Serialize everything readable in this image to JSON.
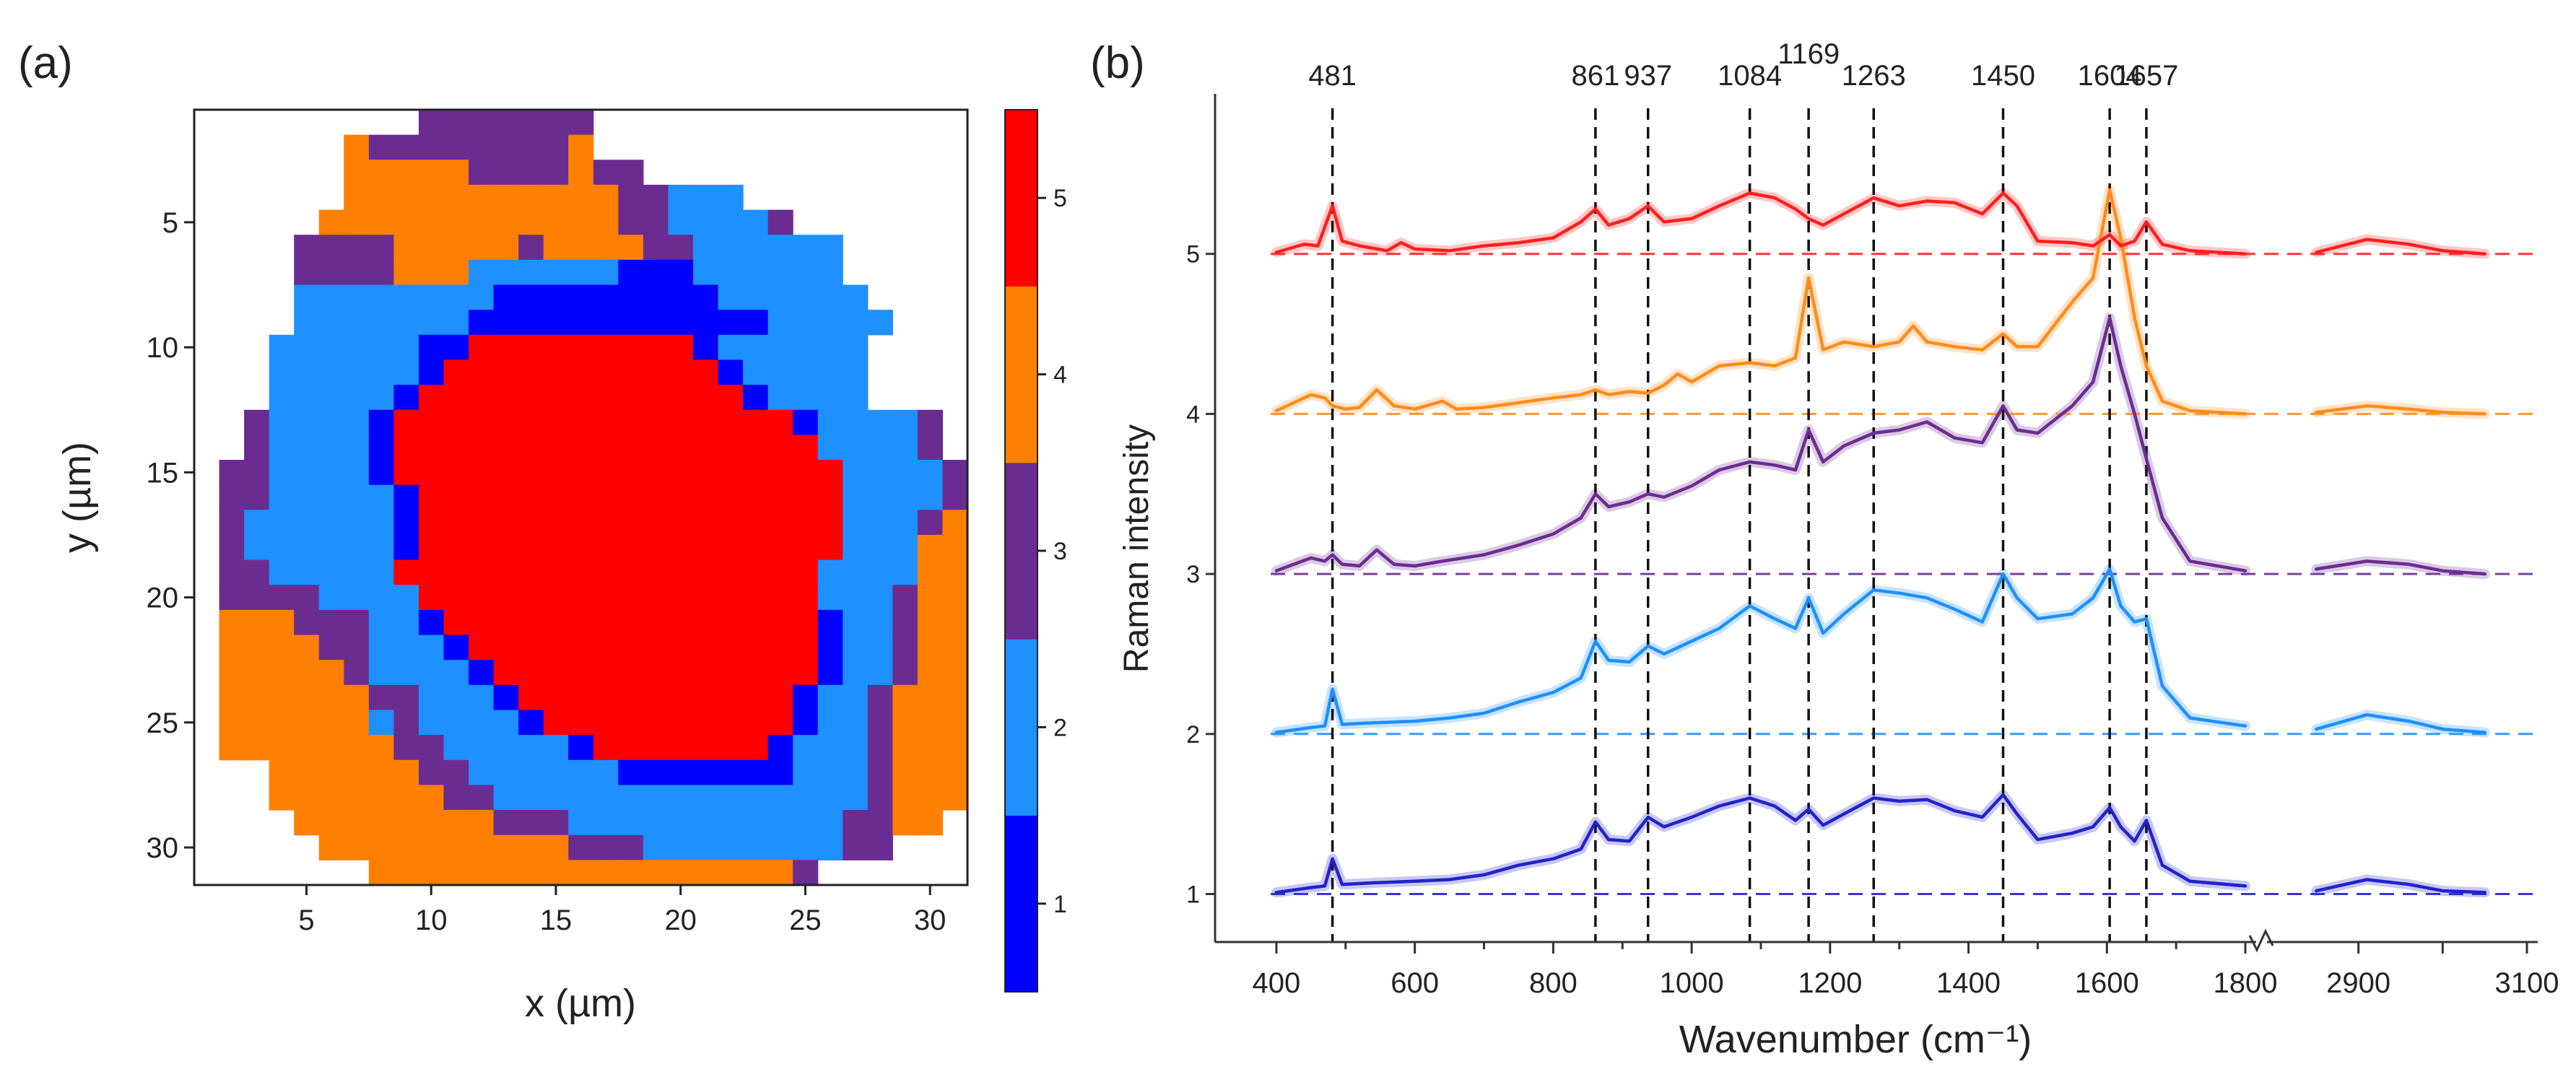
{
  "panel_labels": {
    "a": "(a)",
    "b": "(b)"
  },
  "chart_data": [
    {
      "type": "heatmap",
      "panel": "(a)",
      "xlabel": "x (µm)",
      "ylabel": "y (µm)",
      "xlim": [
        0.5,
        31.5
      ],
      "ylim": [
        31.5,
        0.5
      ],
      "xticks": [
        5,
        10,
        15,
        20,
        25,
        30
      ],
      "yticks": [
        5,
        10,
        15,
        20,
        25,
        30
      ],
      "colorbar": {
        "levels": [
          1,
          2,
          3,
          4,
          5
        ],
        "colors": [
          "#0000ff",
          "#1e90ff",
          "#6b2c91",
          "#ff8000",
          "#ff0000"
        ]
      },
      "cluster_map_rows": [
        ".........3333333...............",
        "......4333333334...............",
        "......444443333433.............",
        "......4444444444433222.........",
        ".....4444444444443322223........",
        "....3333444443444433222222......",
        "....3333444222222111222222......",
        "....22222222111111111222222.....",
        "....222222211111111111122222....",
        "...222222115555555551222222.....",
        "...222222155555555555122222.....",
        "...222221555555555555512222.....",
        "..3222215555555555555555122223..",
        "..3222215555555555555555522223..",
        ".332222155555555555555555522223.",
        ".3322222155555555555555555222234",
        ".3222222155555555555555555222344",
        ".3222222155555555555555555222444",
        ".33222225555555555555555522224444",
        ".333322225555555555555555222344444",
        ".44433322155555555555555512234444",
        ".4444332221555555555555551223444",
        ".4444432222155555555555551223444",
        ".4444443322215555555555512234444",
        ".4444442322221555555555512234444",
        ".4444444332222215555555122234444",
        "...44444433222222111111122234444",
        "...4444444332222222222222223444",
        "....44444444333222222222223344",
        ".....44444444443332222222233",
        ".......444444444444444443"
      ]
    },
    {
      "type": "line",
      "panel": "(b)",
      "xlabel": "Wavenumber (cm⁻¹)",
      "ylabel": "Raman intensity",
      "x_segments": [
        [
          350,
          1800
        ],
        [
          2800,
          3100
        ]
      ],
      "xticks": [
        400,
        600,
        800,
        1000,
        1200,
        1400,
        1600,
        1800,
        2900,
        3100
      ],
      "peak_markers": [
        481,
        861,
        937,
        1084,
        1169,
        1263,
        1450,
        1604,
        1657
      ],
      "series": [
        {
          "name": "1",
          "color": "#2222cc",
          "baseline": 1,
          "points": [
            [
              400,
              1.01
            ],
            [
              450,
              1.04
            ],
            [
              470,
              1.05
            ],
            [
              481,
              1.22
            ],
            [
              495,
              1.06
            ],
            [
              540,
              1.07
            ],
            [
              600,
              1.08
            ],
            [
              650,
              1.09
            ],
            [
              700,
              1.12
            ],
            [
              750,
              1.18
            ],
            [
              800,
              1.22
            ],
            [
              840,
              1.28
            ],
            [
              861,
              1.45
            ],
            [
              880,
              1.34
            ],
            [
              910,
              1.33
            ],
            [
              937,
              1.48
            ],
            [
              960,
              1.42
            ],
            [
              1000,
              1.48
            ],
            [
              1040,
              1.55
            ],
            [
              1084,
              1.6
            ],
            [
              1120,
              1.55
            ],
            [
              1150,
              1.46
            ],
            [
              1169,
              1.53
            ],
            [
              1190,
              1.43
            ],
            [
              1220,
              1.5
            ],
            [
              1263,
              1.6
            ],
            [
              1300,
              1.58
            ],
            [
              1340,
              1.59
            ],
            [
              1380,
              1.52
            ],
            [
              1420,
              1.48
            ],
            [
              1450,
              1.62
            ],
            [
              1470,
              1.5
            ],
            [
              1500,
              1.34
            ],
            [
              1550,
              1.38
            ],
            [
              1580,
              1.42
            ],
            [
              1604,
              1.54
            ],
            [
              1620,
              1.42
            ],
            [
              1640,
              1.33
            ],
            [
              1657,
              1.46
            ],
            [
              1680,
              1.18
            ],
            [
              1720,
              1.08
            ],
            [
              1800,
              1.05
            ],
            [
              2850,
              1.02
            ],
            [
              2910,
              1.09
            ],
            [
              2960,
              1.06
            ],
            [
              3000,
              1.02
            ],
            [
              3050,
              1.01
            ]
          ]
        },
        {
          "name": "2",
          "color": "#1e90ff",
          "baseline": 2,
          "points": [
            [
              400,
              2.01
            ],
            [
              450,
              2.04
            ],
            [
              470,
              2.05
            ],
            [
              481,
              2.28
            ],
            [
              495,
              2.06
            ],
            [
              540,
              2.07
            ],
            [
              600,
              2.08
            ],
            [
              650,
              2.1
            ],
            [
              700,
              2.13
            ],
            [
              750,
              2.2
            ],
            [
              800,
              2.26
            ],
            [
              840,
              2.35
            ],
            [
              861,
              2.58
            ],
            [
              880,
              2.46
            ],
            [
              910,
              2.45
            ],
            [
              937,
              2.55
            ],
            [
              960,
              2.5
            ],
            [
              1000,
              2.58
            ],
            [
              1040,
              2.66
            ],
            [
              1084,
              2.8
            ],
            [
              1120,
              2.72
            ],
            [
              1150,
              2.66
            ],
            [
              1169,
              2.85
            ],
            [
              1190,
              2.63
            ],
            [
              1220,
              2.75
            ],
            [
              1263,
              2.9
            ],
            [
              1300,
              2.88
            ],
            [
              1340,
              2.85
            ],
            [
              1380,
              2.78
            ],
            [
              1420,
              2.7
            ],
            [
              1450,
              3.0
            ],
            [
              1470,
              2.85
            ],
            [
              1500,
              2.72
            ],
            [
              1550,
              2.75
            ],
            [
              1580,
              2.85
            ],
            [
              1604,
              3.03
            ],
            [
              1620,
              2.8
            ],
            [
              1640,
              2.7
            ],
            [
              1657,
              2.72
            ],
            [
              1680,
              2.3
            ],
            [
              1720,
              2.1
            ],
            [
              1800,
              2.05
            ],
            [
              2850,
              2.03
            ],
            [
              2910,
              2.12
            ],
            [
              2960,
              2.08
            ],
            [
              3000,
              2.03
            ],
            [
              3050,
              2.01
            ]
          ]
        },
        {
          "name": "3",
          "color": "#6b2c91",
          "baseline": 3,
          "points": [
            [
              400,
              3.02
            ],
            [
              450,
              3.1
            ],
            [
              470,
              3.08
            ],
            [
              481,
              3.12
            ],
            [
              495,
              3.06
            ],
            [
              520,
              3.05
            ],
            [
              545,
              3.15
            ],
            [
              570,
              3.06
            ],
            [
              600,
              3.05
            ],
            [
              640,
              3.08
            ],
            [
              700,
              3.12
            ],
            [
              750,
              3.18
            ],
            [
              800,
              3.25
            ],
            [
              840,
              3.35
            ],
            [
              861,
              3.5
            ],
            [
              880,
              3.42
            ],
            [
              910,
              3.45
            ],
            [
              937,
              3.5
            ],
            [
              960,
              3.48
            ],
            [
              1000,
              3.55
            ],
            [
              1040,
              3.65
            ],
            [
              1084,
              3.7
            ],
            [
              1120,
              3.68
            ],
            [
              1150,
              3.65
            ],
            [
              1169,
              3.9
            ],
            [
              1190,
              3.7
            ],
            [
              1220,
              3.8
            ],
            [
              1263,
              3.88
            ],
            [
              1300,
              3.9
            ],
            [
              1340,
              3.95
            ],
            [
              1380,
              3.85
            ],
            [
              1420,
              3.82
            ],
            [
              1450,
              4.05
            ],
            [
              1470,
              3.9
            ],
            [
              1500,
              3.88
            ],
            [
              1550,
              4.05
            ],
            [
              1580,
              4.2
            ],
            [
              1604,
              4.6
            ],
            [
              1620,
              4.3
            ],
            [
              1640,
              4.0
            ],
            [
              1657,
              3.72
            ],
            [
              1680,
              3.35
            ],
            [
              1720,
              3.08
            ],
            [
              1800,
              3.02
            ],
            [
              2850,
              3.03
            ],
            [
              2910,
              3.08
            ],
            [
              2960,
              3.06
            ],
            [
              3000,
              3.02
            ],
            [
              3050,
              3.0
            ]
          ]
        },
        {
          "name": "4",
          "color": "#ff8c1a",
          "baseline": 4,
          "points": [
            [
              400,
              4.02
            ],
            [
              450,
              4.12
            ],
            [
              470,
              4.1
            ],
            [
              481,
              4.05
            ],
            [
              500,
              4.03
            ],
            [
              520,
              4.04
            ],
            [
              545,
              4.15
            ],
            [
              570,
              4.05
            ],
            [
              600,
              4.03
            ],
            [
              640,
              4.08
            ],
            [
              660,
              4.03
            ],
            [
              700,
              4.04
            ],
            [
              750,
              4.07
            ],
            [
              800,
              4.1
            ],
            [
              840,
              4.12
            ],
            [
              861,
              4.15
            ],
            [
              880,
              4.12
            ],
            [
              910,
              4.14
            ],
            [
              937,
              4.13
            ],
            [
              960,
              4.18
            ],
            [
              980,
              4.25
            ],
            [
              1000,
              4.2
            ],
            [
              1040,
              4.3
            ],
            [
              1084,
              4.32
            ],
            [
              1120,
              4.3
            ],
            [
              1150,
              4.35
            ],
            [
              1169,
              4.85
            ],
            [
              1190,
              4.4
            ],
            [
              1220,
              4.45
            ],
            [
              1263,
              4.42
            ],
            [
              1300,
              4.45
            ],
            [
              1320,
              4.55
            ],
            [
              1340,
              4.45
            ],
            [
              1380,
              4.42
            ],
            [
              1420,
              4.4
            ],
            [
              1450,
              4.5
            ],
            [
              1470,
              4.42
            ],
            [
              1500,
              4.42
            ],
            [
              1550,
              4.7
            ],
            [
              1580,
              4.85
            ],
            [
              1604,
              5.4
            ],
            [
              1620,
              5.1
            ],
            [
              1640,
              4.6
            ],
            [
              1657,
              4.3
            ],
            [
              1680,
              4.08
            ],
            [
              1720,
              4.02
            ],
            [
              1800,
              4.0
            ],
            [
              2850,
              4.01
            ],
            [
              2910,
              4.05
            ],
            [
              2960,
              4.03
            ],
            [
              3000,
              4.01
            ],
            [
              3050,
              4.0
            ]
          ]
        },
        {
          "name": "5",
          "color": "#ff1f1f",
          "baseline": 5,
          "points": [
            [
              400,
              5.01
            ],
            [
              440,
              5.06
            ],
            [
              460,
              5.05
            ],
            [
              481,
              5.3
            ],
            [
              495,
              5.08
            ],
            [
              520,
              5.05
            ],
            [
              560,
              5.02
            ],
            [
              580,
              5.07
            ],
            [
              600,
              5.03
            ],
            [
              650,
              5.02
            ],
            [
              700,
              5.05
            ],
            [
              750,
              5.07
            ],
            [
              800,
              5.1
            ],
            [
              840,
              5.2
            ],
            [
              861,
              5.28
            ],
            [
              880,
              5.18
            ],
            [
              910,
              5.22
            ],
            [
              937,
              5.3
            ],
            [
              960,
              5.2
            ],
            [
              1000,
              5.22
            ],
            [
              1040,
              5.3
            ],
            [
              1084,
              5.38
            ],
            [
              1120,
              5.35
            ],
            [
              1150,
              5.28
            ],
            [
              1169,
              5.22
            ],
            [
              1190,
              5.18
            ],
            [
              1220,
              5.25
            ],
            [
              1263,
              5.35
            ],
            [
              1300,
              5.3
            ],
            [
              1340,
              5.33
            ],
            [
              1380,
              5.32
            ],
            [
              1420,
              5.25
            ],
            [
              1450,
              5.38
            ],
            [
              1470,
              5.3
            ],
            [
              1500,
              5.08
            ],
            [
              1550,
              5.07
            ],
            [
              1580,
              5.05
            ],
            [
              1604,
              5.12
            ],
            [
              1620,
              5.05
            ],
            [
              1640,
              5.08
            ],
            [
              1657,
              5.2
            ],
            [
              1680,
              5.06
            ],
            [
              1720,
              5.02
            ],
            [
              1800,
              5.0
            ],
            [
              2850,
              5.01
            ],
            [
              2910,
              5.09
            ],
            [
              2960,
              5.06
            ],
            [
              3000,
              5.02
            ],
            [
              3050,
              5.0
            ]
          ]
        }
      ]
    }
  ]
}
